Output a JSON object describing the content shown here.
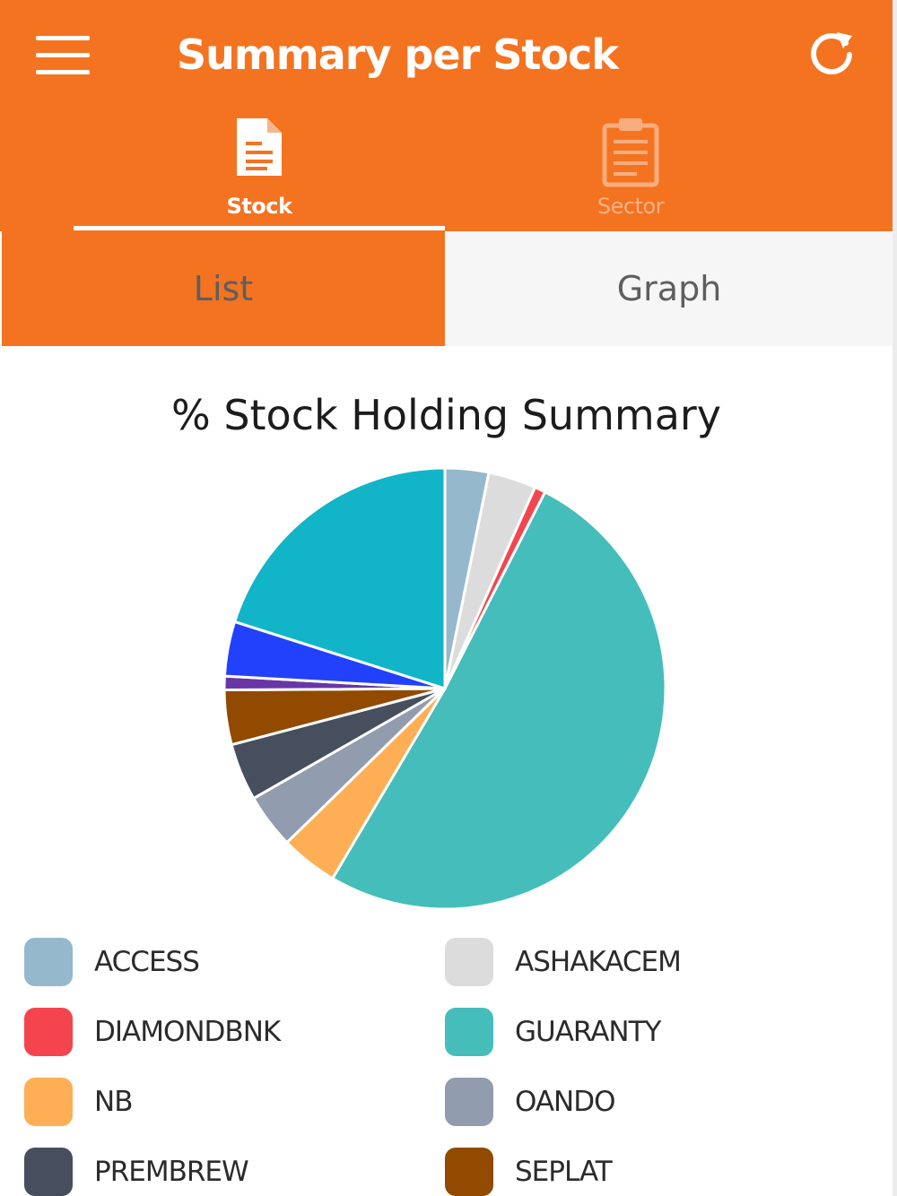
{
  "header": {
    "title": "Summary per Stock",
    "menu_icon": "hamburger-menu-icon",
    "refresh_icon": "refresh-icon",
    "background_color": "#f47321"
  },
  "tabs": [
    {
      "label": "Stock",
      "icon": "document-icon",
      "active": true
    },
    {
      "label": "Sector",
      "icon": "clipboard-icon",
      "active": false
    }
  ],
  "view_toggle": {
    "options": [
      "List",
      "Graph"
    ],
    "selected": "List"
  },
  "chart_data": {
    "type": "pie",
    "title": "% Stock Holding Summary",
    "legend_position": "bottom",
    "series": [
      {
        "name": "ACCESS",
        "value": 3.2,
        "color": "#95b8cd"
      },
      {
        "name": "ASHAKACEM",
        "value": 3.5,
        "color": "#dcdcdc"
      },
      {
        "name": "DIAMONDBNK",
        "value": 0.8,
        "color": "#f4454f"
      },
      {
        "name": "GUARANTY",
        "value": 51.0,
        "color": "#45bdbb"
      },
      {
        "name": "NB",
        "value": 4.2,
        "color": "#feae54"
      },
      {
        "name": "OANDO",
        "value": 4.0,
        "color": "#919cae"
      },
      {
        "name": "PREMBREW",
        "value": 4.2,
        "color": "#474e5d"
      },
      {
        "name": "SEPLAT",
        "value": 4.0,
        "color": "#924a00"
      },
      {
        "name": "",
        "value": 1.0,
        "color": "#6836a6"
      },
      {
        "name": "",
        "value": 4.0,
        "color": "#2241fc"
      },
      {
        "name": "",
        "value": 20.1,
        "color": "#12b4c8"
      }
    ]
  }
}
